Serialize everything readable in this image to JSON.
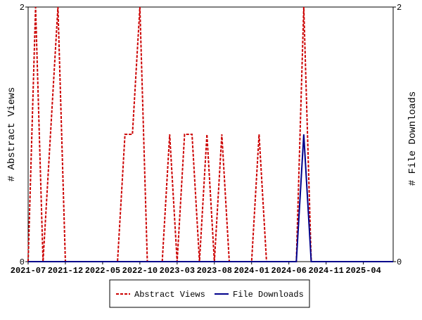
{
  "chart_data": {
    "type": "line",
    "x": [
      "2021-07",
      "2021-08",
      "2021-09",
      "2021-10",
      "2021-11",
      "2021-12",
      "2022-01",
      "2022-02",
      "2022-03",
      "2022-04",
      "2022-05",
      "2022-06",
      "2022-07",
      "2022-08",
      "2022-09",
      "2022-10",
      "2022-11",
      "2022-12",
      "2023-01",
      "2023-02",
      "2023-03",
      "2023-04",
      "2023-05",
      "2023-06",
      "2023-07",
      "2023-08",
      "2023-09",
      "2023-10",
      "2023-11",
      "2023-12",
      "2024-01",
      "2024-02",
      "2024-03",
      "2024-04",
      "2024-05",
      "2024-06",
      "2024-07",
      "2024-08",
      "2024-09",
      "2024-10",
      "2024-11",
      "2024-12",
      "2025-01",
      "2025-02",
      "2025-03",
      "2025-04",
      "2025-05",
      "2025-06",
      "2025-07",
      "2025-08"
    ],
    "series": [
      {
        "name": "Abstract Views",
        "color": "#cc0000",
        "dash": true,
        "values": [
          0,
          2,
          0,
          1,
          2,
          0,
          0,
          0,
          0,
          0,
          0,
          0,
          0,
          1,
          1,
          2,
          0,
          0,
          0,
          1,
          0,
          1,
          1,
          0,
          1,
          0,
          1,
          0,
          0,
          0,
          0,
          1,
          0,
          0,
          0,
          0,
          0,
          2,
          0,
          0,
          0,
          0,
          0,
          0,
          0,
          0,
          0,
          0,
          0,
          0
        ]
      },
      {
        "name": "File Downloads",
        "color": "#00008b",
        "axis": "y2",
        "dash": false,
        "values": [
          0,
          0,
          0,
          0,
          0,
          0,
          0,
          0,
          0,
          0,
          0,
          0,
          0,
          0,
          0,
          0,
          0,
          0,
          0,
          0,
          0,
          0,
          0,
          0,
          0,
          0,
          0,
          0,
          0,
          0,
          0,
          0,
          0,
          0,
          0,
          0,
          0,
          1,
          0,
          0,
          0,
          0,
          0,
          0,
          0,
          0,
          0,
          0,
          0,
          0
        ]
      }
    ],
    "xticks": [
      "2021-07",
      "2021-12",
      "2022-05",
      "2022-10",
      "2023-03",
      "2023-08",
      "2024-01",
      "2024-06",
      "2024-11",
      "2025-04"
    ],
    "ylim": [
      0,
      2
    ],
    "yticks": [
      0,
      2
    ],
    "y2lim": [
      0,
      2
    ],
    "y2ticks": [
      0,
      2
    ],
    "ylabel": "# Abstract Views",
    "y2label": "# File Downloads",
    "legend": "bottom"
  }
}
